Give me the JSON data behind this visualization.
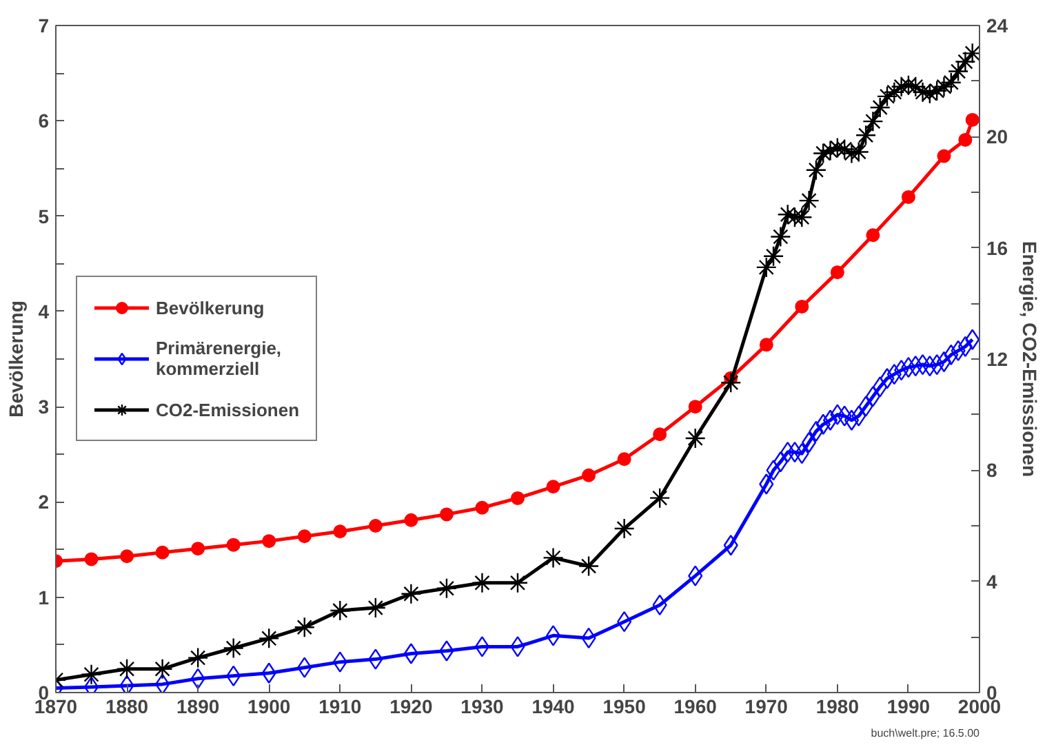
{
  "chart_data": {
    "type": "line",
    "xlabel": null,
    "ylabel": "Bevölkerung",
    "y2label": "Energie, CO2-Emissionen",
    "xlim": [
      1870,
      2000
    ],
    "xticks": [
      1870,
      1880,
      1890,
      1900,
      1910,
      1920,
      1930,
      1940,
      1950,
      1960,
      1970,
      1980,
      1990,
      2000
    ],
    "ylim": [
      0,
      7
    ],
    "yticks": [
      0,
      {
        "value": 0.5,
        "label": null
      },
      1,
      {
        "value": 1.5,
        "label": null
      },
      2,
      {
        "value": 2.5,
        "label": null
      },
      3,
      {
        "value": 3.5,
        "label": null
      },
      4,
      {
        "value": 4.5,
        "label": null
      },
      5,
      {
        "value": 5.5,
        "label": null
      },
      6,
      {
        "value": 6.5,
        "label": null
      },
      7
    ],
    "y2lim": [
      0,
      24
    ],
    "y2ticks": [
      0,
      {
        "value": 2,
        "label": null
      },
      4,
      {
        "value": 6,
        "label": null
      },
      8,
      {
        "value": 10,
        "label": null
      },
      12,
      {
        "value": 14,
        "label": null
      },
      16,
      {
        "value": 18,
        "label": null
      },
      20,
      {
        "value": 22,
        "label": null
      },
      24
    ],
    "grid": false,
    "legend": "left",
    "line_style": "solid",
    "annotations": [
      "buch\\welt.pre; 16.5.00"
    ],
    "series": [
      {
        "name": "Bevölkerung",
        "color": "#ff0000",
        "marker": "circle",
        "x": [
          1870,
          1875,
          1880,
          1885,
          1890,
          1895,
          1900,
          1905,
          1910,
          1915,
          1920,
          1925,
          1930,
          1935,
          1940,
          1945,
          1950,
          1955,
          1960,
          1965,
          1970,
          1975,
          1980,
          1985,
          1990,
          1995,
          1998,
          1999
        ],
        "values": [
          1.38,
          1.4,
          1.43,
          1.47,
          1.51,
          1.55,
          1.59,
          1.64,
          1.69,
          1.75,
          1.81,
          1.87,
          1.94,
          2.04,
          2.16,
          2.28,
          2.45,
          2.71,
          3.0,
          3.3,
          3.65,
          4.05,
          4.41,
          4.8,
          5.2,
          5.63,
          5.8,
          6.01
        ]
      },
      {
        "name": "Primärenergie,\nkommerziell",
        "color": "#0000ff",
        "marker": "diamond",
        "axis": "y2",
        "x": [
          1870,
          1875,
          1880,
          1885,
          1890,
          1895,
          1900,
          1905,
          1910,
          1915,
          1920,
          1925,
          1930,
          1935,
          1940,
          1945,
          1950,
          1955,
          1960,
          1965,
          1970,
          1971,
          1972,
          1973,
          1974,
          1975,
          1976,
          1977,
          1978,
          1979,
          1980,
          1981,
          1982,
          1983,
          1984,
          1985,
          1986,
          1987,
          1988,
          1989,
          1990,
          1991,
          1992,
          1993,
          1994,
          1995,
          1996,
          1997,
          1998,
          1999
        ],
        "values": [
          0.16,
          0.2,
          0.25,
          0.3,
          0.5,
          0.6,
          0.7,
          0.9,
          1.1,
          1.2,
          1.4,
          1.5,
          1.65,
          1.65,
          2.05,
          1.96,
          2.55,
          3.15,
          4.2,
          5.3,
          7.5,
          8.0,
          8.3,
          8.65,
          8.65,
          8.6,
          9.0,
          9.4,
          9.65,
          9.8,
          10.0,
          9.95,
          9.8,
          9.95,
          10.3,
          10.65,
          11.0,
          11.3,
          11.45,
          11.6,
          11.7,
          11.75,
          11.8,
          11.75,
          11.8,
          11.9,
          12.15,
          12.3,
          12.45,
          12.7
        ]
      },
      {
        "name": "CO2-Emissionen",
        "color": "#000000",
        "marker": "cross",
        "axis": "y2",
        "x": [
          1870,
          1875,
          1880,
          1885,
          1890,
          1895,
          1900,
          1905,
          1910,
          1915,
          1920,
          1925,
          1930,
          1935,
          1940,
          1945,
          1950,
          1955,
          1960,
          1965,
          1970,
          1971,
          1972,
          1973,
          1974,
          1975,
          1976,
          1977,
          1978,
          1979,
          1980,
          1981,
          1982,
          1983,
          1984,
          1985,
          1986,
          1987,
          1988,
          1989,
          1990,
          1991,
          1992,
          1993,
          1994,
          1995,
          1996,
          1997,
          1998,
          1999
        ],
        "values": [
          0.45,
          0.65,
          0.85,
          0.85,
          1.25,
          1.6,
          1.95,
          2.35,
          2.95,
          3.05,
          3.55,
          3.75,
          3.95,
          3.95,
          4.85,
          4.55,
          5.9,
          7.0,
          9.15,
          11.15,
          15.3,
          15.7,
          16.4,
          17.2,
          17.1,
          17.1,
          17.7,
          18.8,
          19.4,
          19.5,
          19.6,
          19.55,
          19.4,
          19.45,
          20.05,
          20.55,
          21.05,
          21.45,
          21.6,
          21.8,
          21.85,
          21.8,
          21.6,
          21.55,
          21.65,
          21.8,
          21.95,
          22.35,
          22.7,
          23.0
        ]
      }
    ]
  }
}
